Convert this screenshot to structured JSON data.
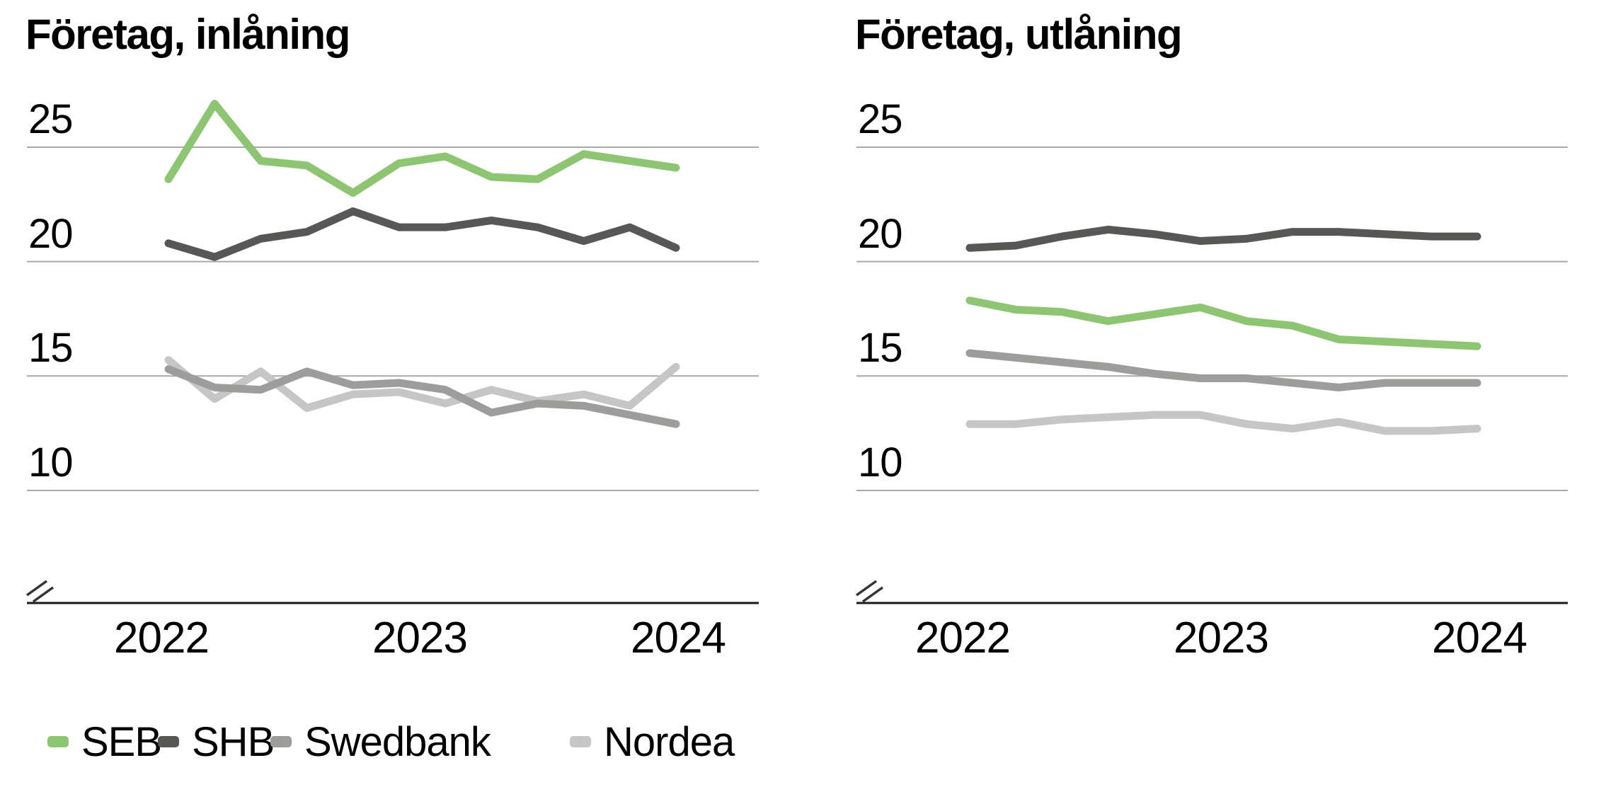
{
  "page": {
    "background": "#ffffff",
    "gridline_color": "#a9a9a9",
    "baseline_color": "#1a1a1a"
  },
  "legend": {
    "items": [
      {
        "label": "SEB",
        "color": "#8ec573"
      },
      {
        "label": "SHB",
        "color": "#575756"
      },
      {
        "label": "Swedbank",
        "color": "#9d9d9c"
      },
      {
        "label": "Nordea",
        "color": "#c6c6c6"
      }
    ]
  },
  "chart_data": [
    {
      "type": "line",
      "title": "Företag, inlåning",
      "x": [
        2022.0,
        2022.18,
        2022.36,
        2022.55,
        2022.73,
        2022.91,
        2023.09,
        2023.27,
        2023.45,
        2023.64,
        2023.82,
        2024.0
      ],
      "x_tick_labels": [
        "2022",
        "2023",
        "2024"
      ],
      "y_tick_labels": [
        "25",
        "20",
        "15",
        "10"
      ],
      "y_ticks": [
        25,
        20,
        15,
        10
      ],
      "ylim_visible": [
        10,
        27.5
      ],
      "axis_break": true,
      "grid": "horizontal",
      "legend_position": "bottom",
      "series": [
        {
          "name": "SEB",
          "color": "#8ec573",
          "values": [
            23.6,
            26.9,
            24.4,
            24.2,
            23.0,
            24.3,
            24.6,
            23.7,
            23.6,
            24.7,
            24.4,
            24.1
          ]
        },
        {
          "name": "SHB",
          "color": "#575756",
          "values": [
            20.8,
            20.2,
            21.0,
            21.3,
            22.2,
            21.5,
            21.5,
            21.8,
            21.5,
            20.9,
            21.5,
            20.6
          ]
        },
        {
          "name": "Swedbank",
          "color": "#9d9d9c",
          "values": [
            15.3,
            14.5,
            14.4,
            15.2,
            14.6,
            14.7,
            14.4,
            13.4,
            13.8,
            13.7,
            13.3,
            12.9
          ]
        },
        {
          "name": "Nordea",
          "color": "#c6c6c6",
          "values": [
            15.7,
            14.0,
            15.2,
            13.6,
            14.2,
            14.3,
            13.8,
            14.4,
            13.9,
            14.2,
            13.7,
            15.4
          ]
        }
      ]
    },
    {
      "type": "line",
      "title": "Företag, utlåning",
      "x": [
        2022.0,
        2022.18,
        2022.36,
        2022.55,
        2022.73,
        2022.91,
        2023.09,
        2023.27,
        2023.45,
        2023.64,
        2023.82,
        2024.0
      ],
      "x_tick_labels": [
        "2022",
        "2023",
        "2024"
      ],
      "y_tick_labels": [
        "25",
        "20",
        "15",
        "10"
      ],
      "y_ticks": [
        25,
        20,
        15,
        10
      ],
      "ylim_visible": [
        10,
        27.5
      ],
      "axis_break": true,
      "grid": "horizontal",
      "legend_position": "bottom",
      "series": [
        {
          "name": "SEB",
          "color": "#8ec573",
          "values": [
            18.3,
            17.9,
            17.8,
            17.4,
            17.7,
            18.0,
            17.4,
            17.2,
            16.6,
            16.5,
            16.4,
            16.3
          ]
        },
        {
          "name": "SHB",
          "color": "#575756",
          "values": [
            20.6,
            20.7,
            21.1,
            21.4,
            21.2,
            20.9,
            21.0,
            21.3,
            21.3,
            21.2,
            21.1,
            21.1
          ]
        },
        {
          "name": "Swedbank",
          "color": "#9d9d9c",
          "values": [
            16.0,
            15.8,
            15.6,
            15.4,
            15.1,
            14.9,
            14.9,
            14.7,
            14.5,
            14.7,
            14.7,
            14.7
          ]
        },
        {
          "name": "Nordea",
          "color": "#c6c6c6",
          "values": [
            12.9,
            12.9,
            13.1,
            13.2,
            13.3,
            13.3,
            12.9,
            12.7,
            13.0,
            12.6,
            12.6,
            12.7
          ]
        }
      ]
    }
  ]
}
